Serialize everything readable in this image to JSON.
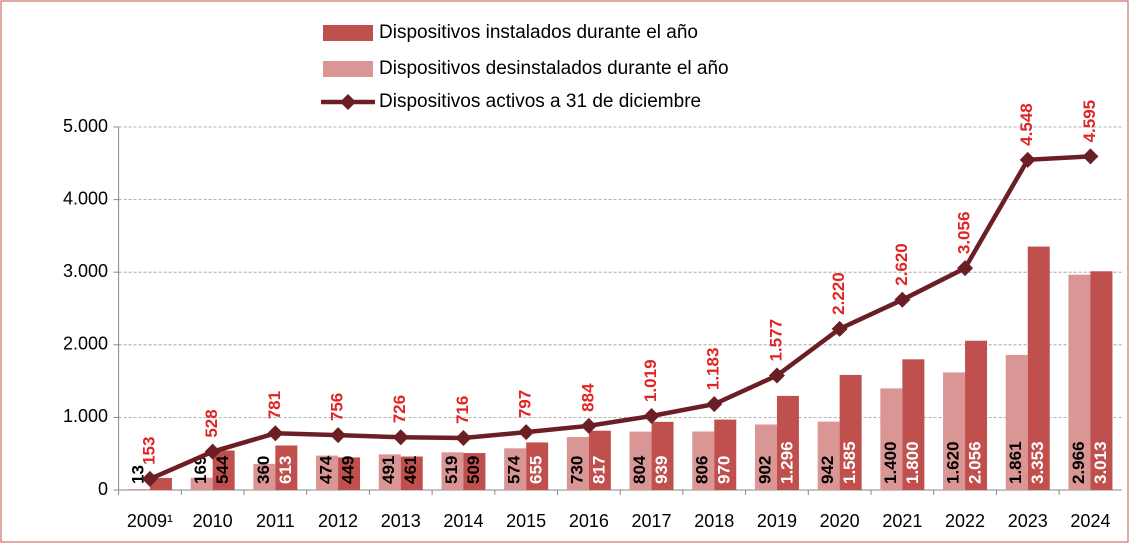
{
  "chart_data": {
    "type": "bar",
    "categories": [
      "2009¹",
      "2010",
      "2011",
      "2012",
      "2013",
      "2014",
      "2015",
      "2016",
      "2017",
      "2018",
      "2019",
      "2020",
      "2021",
      "2022",
      "2023",
      "2024"
    ],
    "series": [
      {
        "name": "Dispositivos instalados durante el año",
        "color": "#c0504d",
        "type": "bar",
        "values": [
          166,
          544,
          613,
          449,
          461,
          509,
          655,
          817,
          939,
          970,
          1296,
          1585,
          1800,
          2056,
          3353,
          3013
        ],
        "value_labels": [
          null,
          "544",
          "613",
          "449",
          "461",
          "509",
          "655",
          "817",
          "939",
          "970",
          "1.296",
          "1.585",
          "1.800",
          "2.056",
          "3.353",
          "3.013"
        ]
      },
      {
        "name": "Dispositivos desinstalados durante el año",
        "color": "#d99694",
        "type": "bar",
        "values": [
          13,
          169,
          360,
          474,
          491,
          519,
          574,
          730,
          804,
          806,
          902,
          942,
          1400,
          1620,
          1861,
          2966
        ],
        "value_labels": [
          "13",
          "169",
          "360",
          "474",
          "491",
          "519",
          "574",
          "730",
          "804",
          "806",
          "902",
          "942",
          "1.400",
          "1.620",
          "1.861",
          "2.966"
        ]
      },
      {
        "name": "Dispositivos activos a 31 de diciembre",
        "color": "#6b1f24",
        "type": "line",
        "values": [
          153,
          528,
          781,
          756,
          726,
          716,
          797,
          884,
          1019,
          1183,
          1577,
          2220,
          2620,
          3056,
          4548,
          4595
        ],
        "value_labels": [
          "153",
          "528",
          "781",
          "756",
          "726",
          "716",
          "797",
          "884",
          "1.019",
          "1.183",
          "1.577",
          "2.220",
          "2.620",
          "3.056",
          "4.548",
          "4.595"
        ]
      }
    ],
    "ylim": [
      0,
      5000
    ],
    "yticks": [
      0,
      {
        "value": 1000,
        "label": "1.000"
      },
      {
        "value": 2000,
        "label": "2.000"
      },
      {
        "value": 3000,
        "label": "3.000"
      },
      {
        "value": 4000,
        "label": "4.000"
      },
      {
        "value": 5000,
        "label": "5.000"
      }
    ],
    "grid": true
  }
}
